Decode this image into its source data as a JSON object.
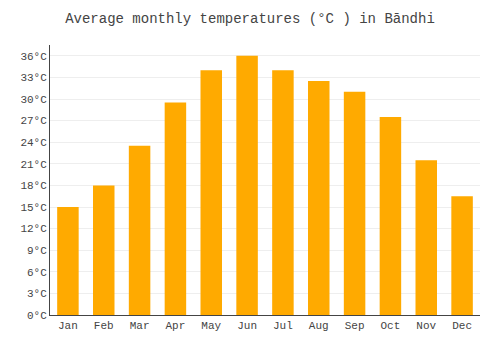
{
  "chart_data": {
    "type": "bar",
    "title": "Average monthly temperatures (°C ) in Bāndhi",
    "categories": [
      "Jan",
      "Feb",
      "Mar",
      "Apr",
      "May",
      "Jun",
      "Jul",
      "Aug",
      "Sep",
      "Oct",
      "Nov",
      "Dec"
    ],
    "values": [
      15,
      18,
      23.5,
      29.5,
      34,
      36,
      34,
      32.5,
      31,
      27.5,
      21.5,
      16.5
    ],
    "color": "#FFAA00",
    "ylim": [
      0,
      37.5
    ],
    "yticks": [
      {
        "value": 0,
        "label": "0°C"
      },
      {
        "value": 3,
        "label": "3°C"
      },
      {
        "value": 6,
        "label": "6°C"
      },
      {
        "value": 9,
        "label": "9°C"
      },
      {
        "value": 12,
        "label": "12°C"
      },
      {
        "value": 15,
        "label": "15°C"
      },
      {
        "value": 18,
        "label": "18°C"
      },
      {
        "value": 21,
        "label": "21°C"
      },
      {
        "value": 24,
        "label": "24°C"
      },
      {
        "value": 27,
        "label": "27°C"
      },
      {
        "value": 30,
        "label": "30°C"
      },
      {
        "value": 33,
        "label": "33°C"
      },
      {
        "value": 36,
        "label": "36°C"
      }
    ],
    "grid": true
  }
}
